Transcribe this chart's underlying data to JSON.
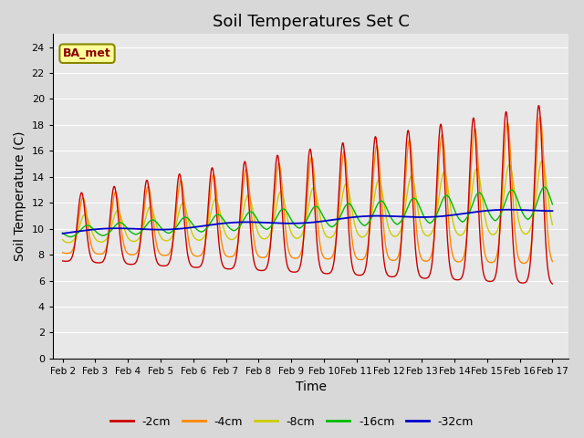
{
  "title": "Soil Temperatures Set C",
  "xlabel": "Time",
  "ylabel": "Soil Temperature (C)",
  "xlim": [
    -0.3,
    15.5
  ],
  "ylim": [
    0,
    25
  ],
  "yticks": [
    0,
    2,
    4,
    6,
    8,
    10,
    12,
    14,
    16,
    18,
    20,
    22,
    24
  ],
  "xtick_labels": [
    "Feb 2",
    "Feb 3",
    "Feb 4",
    "Feb 5",
    "Feb 6",
    "Feb 7",
    "Feb 8",
    "Feb 9",
    "Feb 10",
    "Feb 11",
    "Feb 12",
    "Feb 13",
    "Feb 14",
    "Feb 15",
    "Feb 16",
    "Feb 17"
  ],
  "xtick_positions": [
    0,
    1,
    2,
    3,
    4,
    5,
    6,
    7,
    8,
    9,
    10,
    11,
    12,
    13,
    14,
    15
  ],
  "series_colors": [
    "#cc0000",
    "#ff8800",
    "#cccc00",
    "#00bb00",
    "#0000cc"
  ],
  "series_labels": [
    "-2cm",
    "-4cm",
    "-8cm",
    "-16cm",
    "-32cm"
  ],
  "annotation_text": "BA_met",
  "annotation_box_color": "#ffff99",
  "annotation_border_color": "#888800",
  "background_color": "#e8e8e8",
  "grid_color": "#ffffff",
  "title_fontsize": 13,
  "axis_fontsize": 10,
  "figsize": [
    6.4,
    4.8
  ],
  "dpi": 100
}
